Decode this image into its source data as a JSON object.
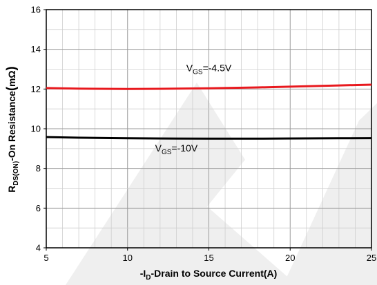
{
  "chart_data": {
    "type": "line",
    "xlabel": {
      "prefix": "-I",
      "sub": "D",
      "rest": "-Drain to Source Current(A)"
    },
    "ylabel": {
      "prefix": "R",
      "sub": "DS(ON)",
      "rest": "-On Resistance",
      "paren_open": "(",
      "unit": "mΩ",
      "paren_close": ")"
    },
    "xlim": [
      5,
      25
    ],
    "ylim": [
      4,
      16
    ],
    "x_ticks": [
      "5",
      "10",
      "15",
      "20",
      "25"
    ],
    "y_ticks": [
      "4",
      "6",
      "8",
      "10",
      "12",
      "14",
      "16"
    ],
    "grid": true,
    "series": [
      {
        "name": "V_GS=-4.5V",
        "color": "#e8191e",
        "x": [
          5,
          7,
          10,
          12,
          15,
          18,
          20,
          23,
          25
        ],
        "y": [
          12.05,
          12.02,
          12.0,
          12.01,
          12.04,
          12.08,
          12.12,
          12.18,
          12.22
        ]
      },
      {
        "name": "V_GS=-10V",
        "color": "#000000",
        "x": [
          5,
          7,
          10,
          12,
          15,
          18,
          20,
          23,
          25
        ],
        "y": [
          9.58,
          9.55,
          9.52,
          9.51,
          9.5,
          9.5,
          9.51,
          9.52,
          9.53
        ]
      }
    ],
    "annotations": [
      {
        "prefix": "V",
        "sub": "GS",
        "rest": "=-4.5V",
        "x": 15,
        "y": 12.9
      },
      {
        "prefix": "V",
        "sub": "GS",
        "rest": "=-10V",
        "x": 13,
        "y": 8.85
      }
    ],
    "watermark_color": "#e2e2e2"
  }
}
